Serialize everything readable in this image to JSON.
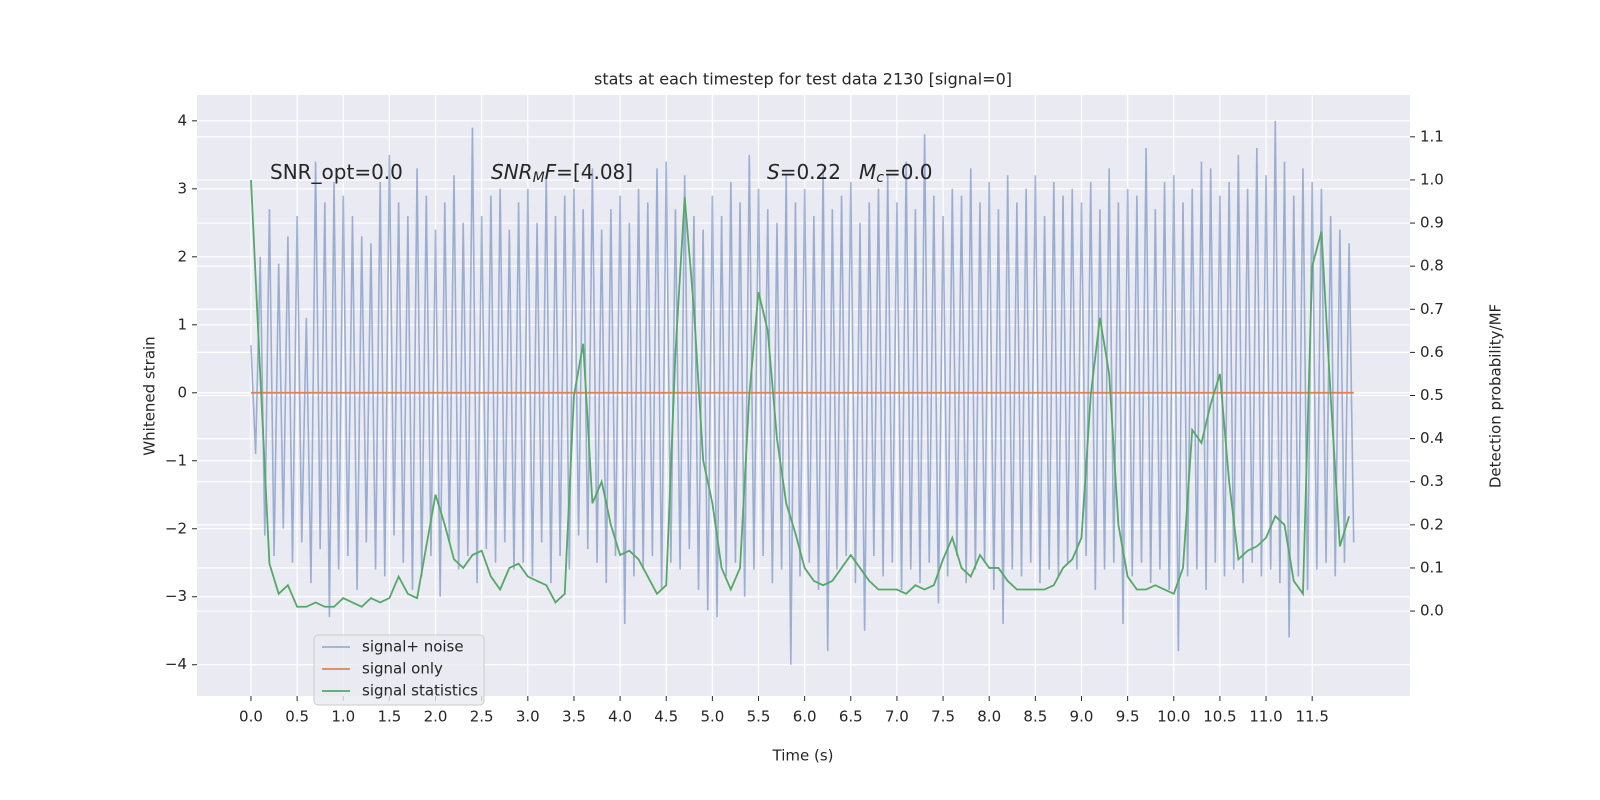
{
  "chart_data": {
    "type": "line",
    "title": "stats at each timestep for test data 2130 [signal=0]",
    "xlabel": "Time (s)",
    "ylabel": "Whitened strain",
    "y2label": "Detection probability/MF",
    "xlim": [
      -0.585,
      12.56
    ],
    "ylim": [
      -4.46,
      4.38
    ],
    "y2lim": [
      -0.197,
      1.197
    ],
    "xticks": [
      {
        "value": 0,
        "label": "0.0"
      },
      0.5,
      {
        "value": 1,
        "label": "1.0"
      },
      1.5,
      {
        "value": 2,
        "label": "2.0"
      },
      2.5,
      {
        "value": 3,
        "label": "3.0"
      },
      3.5,
      {
        "value": 4,
        "label": "4.0"
      },
      4.5,
      {
        "value": 5,
        "label": "5.0"
      },
      5.5,
      {
        "value": 6,
        "label": "6.0"
      },
      6.5,
      {
        "value": 7,
        "label": "7.0"
      },
      7.5,
      {
        "value": 8,
        "label": "8.0"
      },
      8.5,
      {
        "value": 9,
        "label": "9.0"
      },
      9.5,
      {
        "value": 10,
        "label": "10.0"
      },
      10.5,
      {
        "value": 11,
        "label": "11.0"
      },
      11.5
    ],
    "yticks": [
      {
        "value": -4,
        "label": "−4"
      },
      {
        "value": -3,
        "label": "−3"
      },
      {
        "value": -2,
        "label": "−2"
      },
      {
        "value": -1,
        "label": "−1"
      },
      0,
      1,
      2,
      3,
      4
    ],
    "y2ticks": [
      {
        "value": 0,
        "label": "0.0"
      },
      0.1,
      0.2,
      0.3,
      0.4,
      0.5,
      0.6,
      0.7,
      0.8,
      0.9,
      {
        "value": 1,
        "label": "1.0"
      },
      1.1
    ],
    "grid": true,
    "legend": "lower left",
    "annotations": [
      {
        "parts": [
          {
            "text": "SNR_opt=0.0"
          }
        ]
      },
      {
        "parts": [
          {
            "text": "SNR",
            "italic": true
          },
          {
            "text": "M",
            "italic": true,
            "sub": true
          },
          {
            "text": "F",
            "italic": true
          },
          {
            "text": "=[4.08]"
          }
        ]
      },
      {
        "parts": [
          {
            "text": "S",
            "italic": true
          },
          {
            "text": "=0.22"
          }
        ]
      },
      {
        "parts": [
          {
            "text": "M",
            "italic": true
          },
          {
            "text": "c",
            "italic": true,
            "sub": true
          },
          {
            "text": "=0.0"
          }
        ]
      }
    ],
    "series": [
      {
        "name": "signal+ noise",
        "color": "#4c72b0",
        "alpha": 0.5,
        "x": [
          0,
          0.05,
          0.1,
          0.15,
          0.2,
          0.25,
          0.3,
          0.35,
          0.4,
          0.45,
          0.5,
          0.55,
          0.6,
          0.65,
          0.7,
          0.75,
          0.8,
          0.85,
          0.9,
          0.95,
          1,
          1.05,
          1.1,
          1.15,
          1.2,
          1.25,
          1.3,
          1.35,
          1.4,
          1.45,
          1.5,
          1.55,
          1.6,
          1.65,
          1.7,
          1.75,
          1.8,
          1.85,
          1.9,
          1.95,
          2,
          2.05,
          2.1,
          2.15,
          2.2,
          2.25,
          2.3,
          2.35,
          2.4,
          2.45,
          2.5,
          2.55,
          2.6,
          2.65,
          2.7,
          2.75,
          2.8,
          2.85,
          2.9,
          2.95,
          3,
          3.05,
          3.1,
          3.15,
          3.2,
          3.25,
          3.3,
          3.35,
          3.4,
          3.45,
          3.5,
          3.55,
          3.6,
          3.65,
          3.7,
          3.75,
          3.8,
          3.85,
          3.9,
          3.95,
          4,
          4.05,
          4.1,
          4.15,
          4.2,
          4.25,
          4.3,
          4.35,
          4.4,
          4.45,
          4.5,
          4.55,
          4.6,
          4.65,
          4.7,
          4.75,
          4.8,
          4.85,
          4.9,
          4.95,
          5,
          5.05,
          5.1,
          5.15,
          5.2,
          5.25,
          5.3,
          5.35,
          5.4,
          5.45,
          5.5,
          5.55,
          5.6,
          5.65,
          5.7,
          5.75,
          5.8,
          5.85,
          5.9,
          5.95,
          6,
          6.05,
          6.1,
          6.15,
          6.2,
          6.25,
          6.3,
          6.35,
          6.4,
          6.45,
          6.5,
          6.55,
          6.6,
          6.65,
          6.7,
          6.75,
          6.8,
          6.85,
          6.9,
          6.95,
          7,
          7.05,
          7.1,
          7.15,
          7.2,
          7.25,
          7.3,
          7.35,
          7.4,
          7.45,
          7.5,
          7.55,
          7.6,
          7.65,
          7.7,
          7.75,
          7.8,
          7.85,
          7.9,
          7.95,
          8,
          8.05,
          8.1,
          8.15,
          8.2,
          8.25,
          8.3,
          8.35,
          8.4,
          8.45,
          8.5,
          8.55,
          8.6,
          8.65,
          8.7,
          8.75,
          8.8,
          8.85,
          8.9,
          8.95,
          9,
          9.05,
          9.1,
          9.15,
          9.2,
          9.25,
          9.3,
          9.35,
          9.4,
          9.45,
          9.5,
          9.55,
          9.6,
          9.65,
          9.7,
          9.75,
          9.8,
          9.85,
          9.9,
          9.95,
          10,
          10.05,
          10.1,
          10.15,
          10.2,
          10.25,
          10.3,
          10.35,
          10.4,
          10.45,
          10.5,
          10.55,
          10.6,
          10.65,
          10.7,
          10.75,
          10.8,
          10.85,
          10.9,
          10.95,
          11,
          11.05,
          11.1,
          11.15,
          11.2,
          11.25,
          11.3,
          11.35,
          11.4,
          11.45,
          11.5,
          11.55,
          11.6,
          11.65,
          11.7,
          11.75,
          11.8,
          11.85,
          11.9,
          11.95
        ],
        "values": [
          0.7,
          -0.9,
          2.0,
          -2.1,
          2.7,
          -2.4,
          1.9,
          -2.0,
          2.3,
          -2.5,
          2.6,
          -2.2,
          1.1,
          -2.8,
          3.4,
          -2.3,
          2.8,
          -3.3,
          3.1,
          -2.6,
          2.9,
          -2.4,
          2.6,
          -2.9,
          2.3,
          -2.2,
          2.2,
          -2.6,
          3.1,
          -2.7,
          3.5,
          -2.1,
          2.8,
          -2.5,
          2.6,
          -2.9,
          3.3,
          -2.7,
          2.9,
          -2.4,
          2.4,
          -3.0,
          2.8,
          -2.2,
          3.2,
          -2.6,
          2.5,
          -2.4,
          3.9,
          -2.8,
          2.6,
          -2.3,
          2.9,
          -2.5,
          3.0,
          -2.2,
          2.4,
          -2.6,
          2.8,
          -2.5,
          3.0,
          -2.7,
          2.5,
          -2.2,
          3.2,
          -2.8,
          2.6,
          -2.4,
          2.9,
          -2.6,
          3.0,
          -2.1,
          2.7,
          -2.3,
          3.3,
          -2.5,
          2.4,
          -2.8,
          2.7,
          -2.4,
          2.9,
          -3.4,
          2.5,
          -2.7,
          3.0,
          -2.6,
          2.8,
          -2.4,
          3.3,
          -2.9,
          3.4,
          -2.5,
          2.7,
          -2.6,
          3.2,
          -2.3,
          2.6,
          -2.9,
          2.4,
          -3.2,
          2.9,
          -3.3,
          2.6,
          -2.7,
          3.1,
          -2.5,
          2.8,
          -3.0,
          3.5,
          -2.6,
          3.0,
          -2.4,
          2.7,
          -2.8,
          2.5,
          -2.6,
          3.2,
          -4.0,
          2.8,
          -2.7,
          3.0,
          -2.5,
          2.6,
          -2.9,
          3.3,
          -3.8,
          2.7,
          -2.6,
          2.9,
          -2.4,
          3.1,
          -2.8,
          2.5,
          -3.5,
          2.8,
          -2.4,
          3.0,
          -2.7,
          3.2,
          -2.5,
          2.8,
          -2.9,
          3.4,
          -2.6,
          2.7,
          -2.8,
          3.8,
          -2.5,
          2.9,
          -3.1,
          2.6,
          -2.7,
          3.0,
          -2.4,
          2.9,
          -2.8,
          3.3,
          -2.6,
          2.8,
          -2.5,
          3.1,
          -2.9,
          2.7,
          -3.4,
          3.2,
          -2.6,
          2.8,
          -2.7,
          3.0,
          -2.5,
          3.2,
          -2.8,
          2.6,
          -2.6,
          3.1,
          -2.7,
          2.9,
          -2.5,
          3.0,
          -2.6,
          2.8,
          -2.4,
          3.1,
          -2.9,
          2.7,
          -2.6,
          3.3,
          -2.5,
          2.8,
          -3.4,
          3.0,
          -2.7,
          2.9,
          -2.5,
          3.6,
          -2.8,
          2.7,
          -2.6,
          3.1,
          -2.9,
          3.2,
          -3.8,
          2.8,
          -2.7,
          3.0,
          -2.6,
          3.4,
          -2.9,
          3.3,
          -2.5,
          2.9,
          -2.7,
          3.1,
          -2.6,
          3.5,
          -2.8,
          3.0,
          -2.5,
          3.6,
          -2.7,
          3.2,
          -2.6,
          4.0,
          -2.8,
          3.4,
          -3.6,
          2.9,
          -2.7,
          3.3,
          -2.9,
          3.1,
          -2.6,
          3.0,
          -2.5,
          2.6,
          -2.7,
          2.4,
          -2.5,
          2.2,
          -2.2
        ]
      },
      {
        "name": "signal only",
        "color": "#dd8452",
        "x": [
          0,
          11.95
        ],
        "values": [
          0,
          0
        ]
      },
      {
        "name": "signal statistics",
        "color": "#55a868",
        "axis": "y2",
        "x": [
          0,
          0.1,
          0.2,
          0.3,
          0.4,
          0.5,
          0.6,
          0.7,
          0.8,
          0.9,
          1,
          1.1,
          1.2,
          1.3,
          1.4,
          1.5,
          1.6,
          1.7,
          1.8,
          1.9,
          2,
          2.1,
          2.2,
          2.3,
          2.4,
          2.5,
          2.6,
          2.7,
          2.8,
          2.9,
          3,
          3.1,
          3.2,
          3.3,
          3.4,
          3.5,
          3.6,
          3.7,
          3.8,
          3.9,
          4,
          4.1,
          4.2,
          4.3,
          4.4,
          4.5,
          4.6,
          4.7,
          4.8,
          4.9,
          5,
          5.1,
          5.2,
          5.3,
          5.4,
          5.5,
          5.6,
          5.7,
          5.8,
          5.9,
          6,
          6.1,
          6.2,
          6.3,
          6.4,
          6.5,
          6.6,
          6.7,
          6.8,
          6.9,
          7,
          7.1,
          7.2,
          7.3,
          7.4,
          7.5,
          7.6,
          7.7,
          7.8,
          7.9,
          8,
          8.1,
          8.2,
          8.3,
          8.4,
          8.5,
          8.6,
          8.7,
          8.8,
          8.9,
          9,
          9.1,
          9.2,
          9.3,
          9.4,
          9.5,
          9.6,
          9.7,
          9.8,
          9.9,
          10,
          10.1,
          10.2,
          10.3,
          10.4,
          10.5,
          10.6,
          10.7,
          10.8,
          10.9,
          11,
          11.1,
          11.2,
          11.3,
          11.4,
          11.5,
          11.6,
          11.7,
          11.8,
          11.9
        ],
        "values": [
          1.0,
          0.55,
          0.11,
          0.04,
          0.06,
          0.01,
          0.01,
          0.02,
          0.01,
          0.01,
          0.03,
          0.02,
          0.01,
          0.03,
          0.02,
          0.03,
          0.08,
          0.04,
          0.03,
          0.15,
          0.27,
          0.2,
          0.12,
          0.1,
          0.13,
          0.14,
          0.08,
          0.05,
          0.1,
          0.11,
          0.08,
          0.07,
          0.06,
          0.02,
          0.04,
          0.5,
          0.62,
          0.25,
          0.3,
          0.2,
          0.13,
          0.14,
          0.12,
          0.08,
          0.04,
          0.06,
          0.6,
          0.96,
          0.7,
          0.35,
          0.25,
          0.1,
          0.05,
          0.1,
          0.5,
          0.74,
          0.65,
          0.4,
          0.25,
          0.18,
          0.1,
          0.07,
          0.06,
          0.07,
          0.1,
          0.13,
          0.1,
          0.07,
          0.05,
          0.05,
          0.05,
          0.04,
          0.06,
          0.05,
          0.06,
          0.12,
          0.17,
          0.1,
          0.08,
          0.13,
          0.1,
          0.1,
          0.07,
          0.05,
          0.05,
          0.05,
          0.05,
          0.06,
          0.1,
          0.12,
          0.17,
          0.5,
          0.68,
          0.55,
          0.2,
          0.08,
          0.05,
          0.05,
          0.06,
          0.05,
          0.04,
          0.1,
          0.42,
          0.39,
          0.48,
          0.55,
          0.3,
          0.12,
          0.14,
          0.15,
          0.17,
          0.22,
          0.2,
          0.07,
          0.04,
          0.8,
          0.88,
          0.5,
          0.15,
          0.22
        ]
      }
    ]
  }
}
